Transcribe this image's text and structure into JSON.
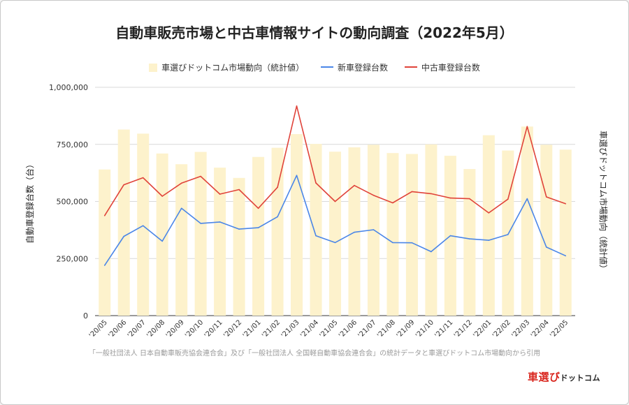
{
  "title": "自動車販売市場と中古車情報サイトの動向調査（2022年5月）",
  "source_note": "「一般社団法人 日本自動車販売協会連合会」及び「一般社団法人 全国軽自動車協会連合会」の統計データと車選びドットコム市場動向から引用",
  "brand": {
    "main": "車選び",
    "sub": "ドットコム"
  },
  "chart_data": {
    "type": "bar",
    "title": "自動車販売市場と中古車情報サイトの動向調査（2022年5月）",
    "ylabel": "自動車登録台数（台）",
    "y2label": "車選びドットコム市場動向（統計値）",
    "ylim": [
      0,
      1000000
    ],
    "yticks": [
      0,
      250000,
      500000,
      750000,
      1000000
    ],
    "ytick_labels": [
      "0",
      "250,000",
      "500,000",
      "750,000",
      "1,000,000"
    ],
    "grid": true,
    "legend": "top",
    "categories": [
      "'20/05",
      "'20/06",
      "'20/07",
      "'20/08",
      "'20/09",
      "'20/10",
      "'20/11",
      "'20/12",
      "'21/01",
      "'21/02",
      "'21/03",
      "'21/04",
      "'21/05",
      "'21/06",
      "'21/07",
      "'21/08",
      "'21/09",
      "'21/10",
      "'21/11",
      "'21/12",
      "'22/01",
      "'22/02",
      "'22/03",
      "'22/04",
      "'22/05"
    ],
    "series": [
      {
        "name": "車選びドットコム市場動向（統計値）",
        "type": "bar",
        "color": "#fdf2cc",
        "values": [
          640000,
          815000,
          797000,
          710000,
          663000,
          717000,
          648000,
          603000,
          695000,
          735000,
          795000,
          752000,
          718000,
          737000,
          748000,
          712000,
          708000,
          750000,
          700000,
          642000,
          790000,
          723000,
          828000,
          748000,
          727000
        ]
      },
      {
        "name": "新車登録台数",
        "type": "line",
        "color": "#4a86e8",
        "values": [
          220000,
          347000,
          394000,
          326000,
          470000,
          404000,
          410000,
          379000,
          385000,
          433000,
          614000,
          350000,
          320000,
          365000,
          376000,
          320000,
          319000,
          280000,
          350000,
          336000,
          330000,
          355000,
          512000,
          300000,
          262000
        ]
      },
      {
        "name": "中古車登録台数",
        "type": "line",
        "color": "#e0433a",
        "values": [
          438000,
          573000,
          604000,
          523000,
          580000,
          610000,
          532000,
          552000,
          470000,
          562000,
          918000,
          581000,
          500000,
          570000,
          527000,
          494000,
          543000,
          534000,
          515000,
          512000,
          450000,
          510000,
          828000,
          520000,
          490000
        ]
      }
    ]
  }
}
